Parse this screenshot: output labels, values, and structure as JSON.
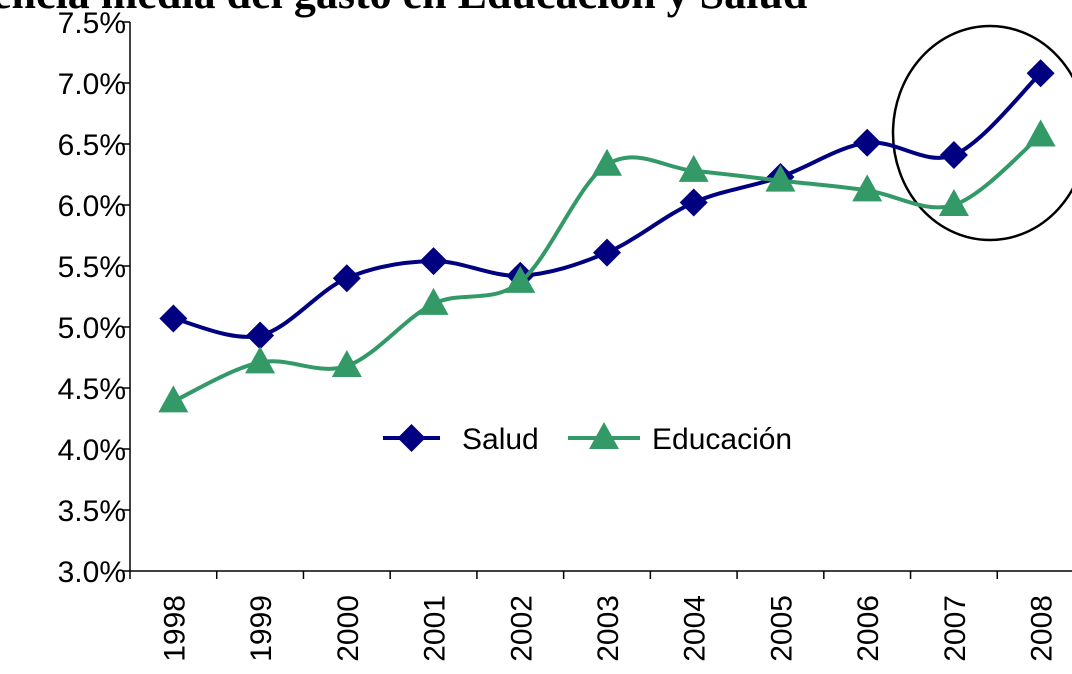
{
  "chart_data": {
    "type": "line",
    "title": "encia media del gasto en Educación y Salud",
    "categories": [
      "1998",
      "1999",
      "2000",
      "2001",
      "2002",
      "2003",
      "2004",
      "2005",
      "2006",
      "2007",
      "2008"
    ],
    "series": [
      {
        "name": "Salud",
        "color": "#000080",
        "marker": "diamond",
        "values": [
          5.07,
          4.93,
          5.4,
          5.54,
          5.42,
          5.61,
          6.02,
          6.23,
          6.51,
          6.41,
          7.08
        ]
      },
      {
        "name": "Educación",
        "color": "#339966",
        "marker": "triangle",
        "values": [
          4.39,
          4.71,
          4.68,
          5.19,
          5.37,
          6.33,
          6.28,
          6.2,
          6.12,
          6.0,
          6.57
        ]
      }
    ],
    "ylim": [
      3.0,
      7.5
    ],
    "yticks": [
      {
        "value": 3.0,
        "label": "3.0%"
      },
      {
        "value": 3.5,
        "label": "3.5%"
      },
      {
        "value": 4.0,
        "label": "4.0%"
      },
      {
        "value": 4.5,
        "label": "4.5%"
      },
      {
        "value": 5.0,
        "label": "5.0%"
      },
      {
        "value": 5.5,
        "label": "5.5%"
      },
      {
        "value": 6.0,
        "label": "6.0%"
      },
      {
        "value": 6.5,
        "label": "6.5%"
      },
      {
        "value": 7.0,
        "label": "7.0%"
      },
      {
        "value": 7.5,
        "label": "7.5%"
      }
    ],
    "grid": false,
    "smooth": true
  }
}
